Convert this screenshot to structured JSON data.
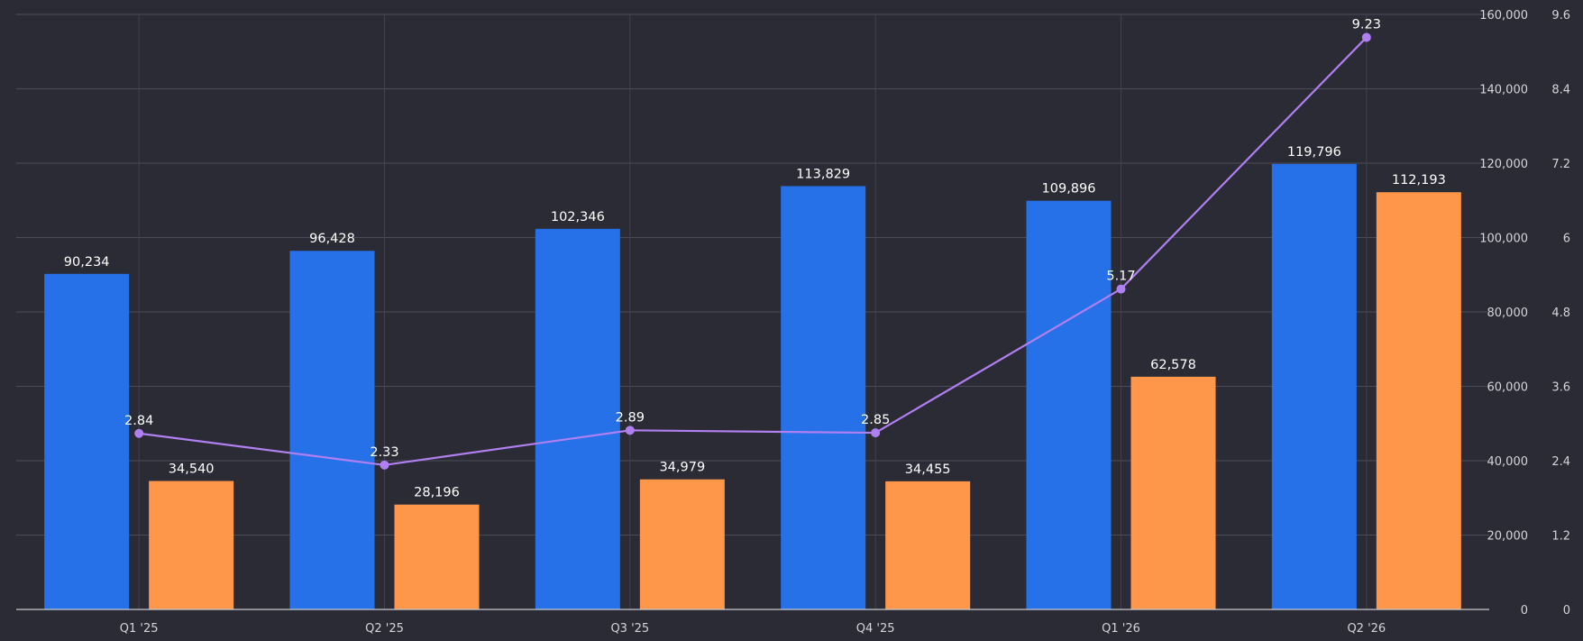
{
  "chart_data": {
    "type": "bar",
    "categories": [
      "Q1 '25",
      "Q2 '25",
      "Q3 '25",
      "Q4 '25",
      "Q1 '26",
      "Q2 '26"
    ],
    "series": [
      {
        "type": "bar",
        "axis": "left",
        "color": "#2671e8",
        "values": [
          90234,
          96428,
          102346,
          113829,
          109896,
          119796
        ]
      },
      {
        "type": "bar",
        "axis": "left",
        "color": "#ff974b",
        "values": [
          34540,
          28196,
          34979,
          34455,
          62578,
          112193
        ]
      },
      {
        "type": "line",
        "axis": "right",
        "color": "#b07ff0",
        "values": [
          2.84,
          2.33,
          2.89,
          2.85,
          5.17,
          9.23
        ]
      }
    ],
    "bar_value_labels": [
      [
        "90,234",
        "96,428",
        "102,346",
        "113,829",
        "109,896",
        "119,796"
      ],
      [
        "34,540",
        "28,196",
        "34,979",
        "34,455",
        "62,578",
        "112,193"
      ]
    ],
    "line_value_labels": [
      "2.84",
      "2.33",
      "2.89",
      "2.85",
      "5.17",
      "9.23"
    ],
    "y_left": {
      "ylim": [
        0,
        160000
      ],
      "ticks": [
        0,
        20000,
        40000,
        60000,
        80000,
        100000,
        120000,
        140000,
        160000
      ],
      "tick_labels": [
        "0",
        "20,000",
        "40,000",
        "60,000",
        "80,000",
        "100,000",
        "120,000",
        "140,000",
        "160,000"
      ]
    },
    "y_right": {
      "ylim": [
        0,
        9.6
      ],
      "tick_labels": [
        "0",
        "1.2",
        "2.4",
        "3.6",
        "4.8",
        "6",
        "7.2",
        "8.4",
        "9.6"
      ]
    },
    "grid": true,
    "legend": false,
    "title": "",
    "xlabel": "",
    "ylabel": ""
  }
}
